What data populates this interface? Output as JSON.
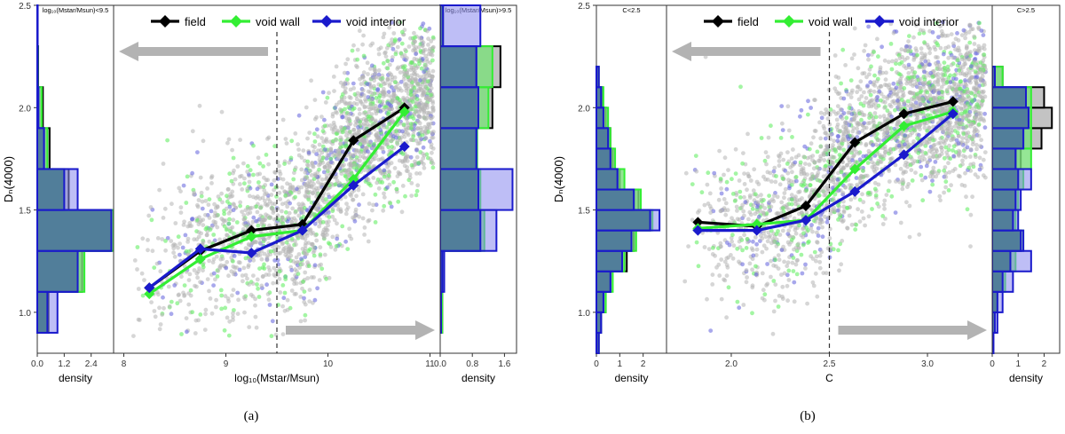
{
  "colors": {
    "field": "#000000",
    "void_wall": "#33ee33",
    "void_interior": "#1a1acc",
    "scatter": "#b0b0b0",
    "arrow": "#b3b3b3"
  },
  "panels": [
    {
      "id": "a",
      "caption": "(a)",
      "ylabel": "Dₙ(4000)",
      "yticks": [
        1.0,
        1.5,
        2.0,
        2.5
      ],
      "ylim": [
        0.8,
        2.5
      ],
      "legend": [
        "field",
        "void wall",
        "void interior"
      ],
      "left_strip_title": "log₁₀(Mstar/Msun)<9.5",
      "right_strip_title": "log₁₀(Mstar/Msun)>9.5",
      "main": {
        "xlabel": "log₁₀(Mstar/Msun)",
        "xticks": [
          8,
          9,
          10,
          11
        ],
        "xlim": [
          7.9,
          11.1
        ],
        "split": 9.5,
        "scatter_seed": 11,
        "series": [
          {
            "name": "field",
            "x": [
              8.25,
              8.75,
              9.25,
              9.75,
              10.25,
              10.75
            ],
            "y": [
              1.12,
              1.3,
              1.4,
              1.43,
              1.84,
              2.0
            ]
          },
          {
            "name": "void wall",
            "x": [
              8.25,
              8.75,
              9.25,
              9.75,
              10.25,
              10.75
            ],
            "y": [
              1.09,
              1.26,
              1.37,
              1.4,
              1.65,
              1.98
            ]
          },
          {
            "name": "void interior",
            "x": [
              8.25,
              8.75,
              9.25,
              9.75,
              10.25,
              10.75
            ],
            "y": [
              1.12,
              1.31,
              1.29,
              1.4,
              1.62,
              1.81
            ]
          }
        ]
      },
      "left_hist": {
        "xlabel": "density",
        "xticks": [
          "0.0",
          "1.2",
          "2.4"
        ],
        "xlim": [
          0,
          3.4
        ],
        "bins": [
          0.9,
          1.1,
          1.3,
          1.5,
          1.7,
          1.9,
          2.1,
          2.3,
          2.5
        ],
        "field": [
          0.5,
          2.0,
          3.3,
          1.4,
          0.55,
          0.25,
          0.04,
          0.02
        ],
        "void_wall": [
          0.45,
          2.1,
          3.4,
          1.2,
          0.45,
          0.2,
          0.03,
          0.02
        ],
        "void_interior": [
          0.9,
          1.8,
          3.3,
          1.8,
          0.3,
          0.05,
          0.02,
          0.02
        ]
      },
      "right_hist": {
        "xlabel": "density",
        "xticks": [
          "0.0",
          "0.8",
          "1.6"
        ],
        "xlim": [
          0,
          1.9
        ],
        "bins": [
          0.9,
          1.1,
          1.3,
          1.5,
          1.7,
          1.9,
          2.1,
          2.3,
          2.5
        ],
        "field": [
          0.05,
          0.05,
          1.0,
          0.95,
          0.9,
          1.3,
          1.5,
          0.07
        ],
        "void_wall": [
          0.05,
          0.05,
          1.1,
          1.0,
          0.92,
          1.2,
          1.3,
          0.07
        ],
        "void_interior": [
          0.02,
          0.1,
          1.4,
          1.8,
          0.9,
          0.95,
          0.9,
          1.0
        ]
      }
    },
    {
      "id": "b",
      "caption": "(b)",
      "ylabel": "Dₙ(4000)",
      "yticks": [
        1.0,
        1.5,
        2.0,
        2.5
      ],
      "ylim": [
        0.8,
        2.5
      ],
      "legend": [
        "field",
        "void wall",
        "void interior"
      ],
      "left_strip_title": "C<2.5",
      "right_strip_title": "C>2.5",
      "main": {
        "xlabel": "C",
        "xticks": [
          2.0,
          2.5,
          3.0
        ],
        "xtick_labels": [
          "2.0",
          "2.5",
          "3.0"
        ],
        "xlim": [
          1.67,
          3.33
        ],
        "split": 2.5,
        "scatter_seed": 29,
        "series": [
          {
            "name": "field",
            "x": [
              1.83,
              2.13,
              2.38,
              2.63,
              2.88,
              3.13
            ],
            "y": [
              1.44,
              1.42,
              1.52,
              1.83,
              1.97,
              2.03
            ]
          },
          {
            "name": "void wall",
            "x": [
              1.83,
              2.13,
              2.38,
              2.63,
              2.88,
              3.13
            ],
            "y": [
              1.41,
              1.43,
              1.45,
              1.7,
              1.91,
              1.98
            ]
          },
          {
            "name": "void interior",
            "x": [
              1.83,
              2.13,
              2.38,
              2.63,
              2.88,
              3.13
            ],
            "y": [
              1.4,
              1.4,
              1.45,
              1.59,
              1.77,
              1.97
            ]
          }
        ]
      },
      "left_hist": {
        "xlabel": "density",
        "xticks": [
          "0",
          "1",
          "2"
        ],
        "xlim": [
          0,
          3.0
        ],
        "bins": [
          0.8,
          0.9,
          1.0,
          1.1,
          1.2,
          1.3,
          1.4,
          1.5,
          1.6,
          1.7,
          1.8,
          1.9,
          2.0,
          2.1,
          2.2
        ],
        "field": [
          0.1,
          0.2,
          0.4,
          0.6,
          1.3,
          1.6,
          2.3,
          1.8,
          1.0,
          0.7,
          0.6,
          0.4,
          0.25,
          0.1
        ],
        "void_wall": [
          0.1,
          0.2,
          0.4,
          0.7,
          1.2,
          1.7,
          2.4,
          1.9,
          1.2,
          0.8,
          0.6,
          0.5,
          0.3,
          0.1
        ],
        "void_interior": [
          0.1,
          0.2,
          0.3,
          0.6,
          1.1,
          1.5,
          2.7,
          1.6,
          0.9,
          0.6,
          0.5,
          0.3,
          0.2,
          0.1
        ]
      },
      "right_hist": {
        "xlabel": "density",
        "xticks": [
          "0",
          "1",
          "2"
        ],
        "xlim": [
          0,
          2.6
        ],
        "bins": [
          0.8,
          0.9,
          1.0,
          1.1,
          1.2,
          1.3,
          1.4,
          1.5,
          1.6,
          1.7,
          1.8,
          1.9,
          2.0,
          2.1,
          2.2
        ],
        "field": [
          0.02,
          0.1,
          0.2,
          0.4,
          0.7,
          1.1,
          0.8,
          0.9,
          1.0,
          1.1,
          1.9,
          2.3,
          2.0,
          0.4
        ],
        "void_wall": [
          0.02,
          0.1,
          0.2,
          0.5,
          0.9,
          1.2,
          0.9,
          1.0,
          1.2,
          1.5,
          1.5,
          1.5,
          1.5,
          0.4
        ],
        "void_interior": [
          0.05,
          0.2,
          0.4,
          0.8,
          1.5,
          1.2,
          1.0,
          1.1,
          1.5,
          0.9,
          1.2,
          1.4,
          1.3,
          0.1
        ]
      }
    }
  ]
}
